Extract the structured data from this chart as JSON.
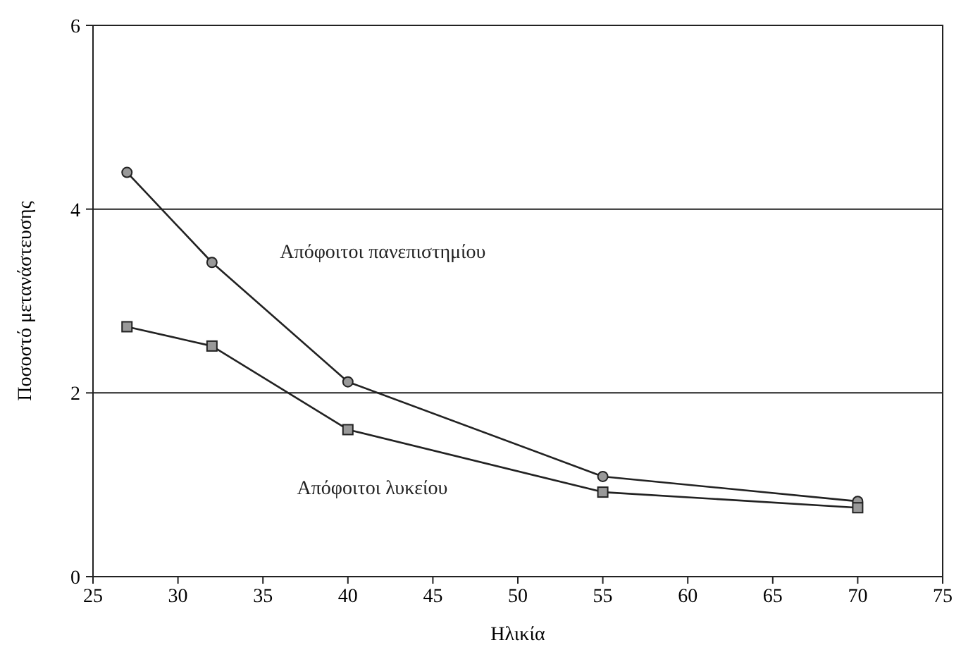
{
  "chart_data": {
    "type": "line",
    "xlabel": "Ηλικία",
    "ylabel": "Ποσοστό μετανάστευσης",
    "x": [
      27,
      32,
      40,
      55,
      70
    ],
    "series": [
      {
        "name": "Απόφοιτοι πανεπιστημίου",
        "color": "#222222",
        "marker": "circle",
        "values": [
          4.4,
          3.42,
          2.12,
          1.09,
          0.82
        ]
      },
      {
        "name": "Απόφοιτοι λυκείου",
        "color": "#222222",
        "marker": "square",
        "values": [
          2.72,
          2.51,
          1.6,
          0.92,
          0.75
        ]
      }
    ],
    "xlim": [
      25,
      75
    ],
    "xticks": [
      25,
      30,
      35,
      40,
      45,
      50,
      55,
      60,
      65,
      70,
      75
    ],
    "ylim": [
      0,
      6
    ],
    "yticks": [
      0,
      2,
      4,
      6
    ],
    "grid": "y",
    "legend": false,
    "line_style": "solid"
  }
}
